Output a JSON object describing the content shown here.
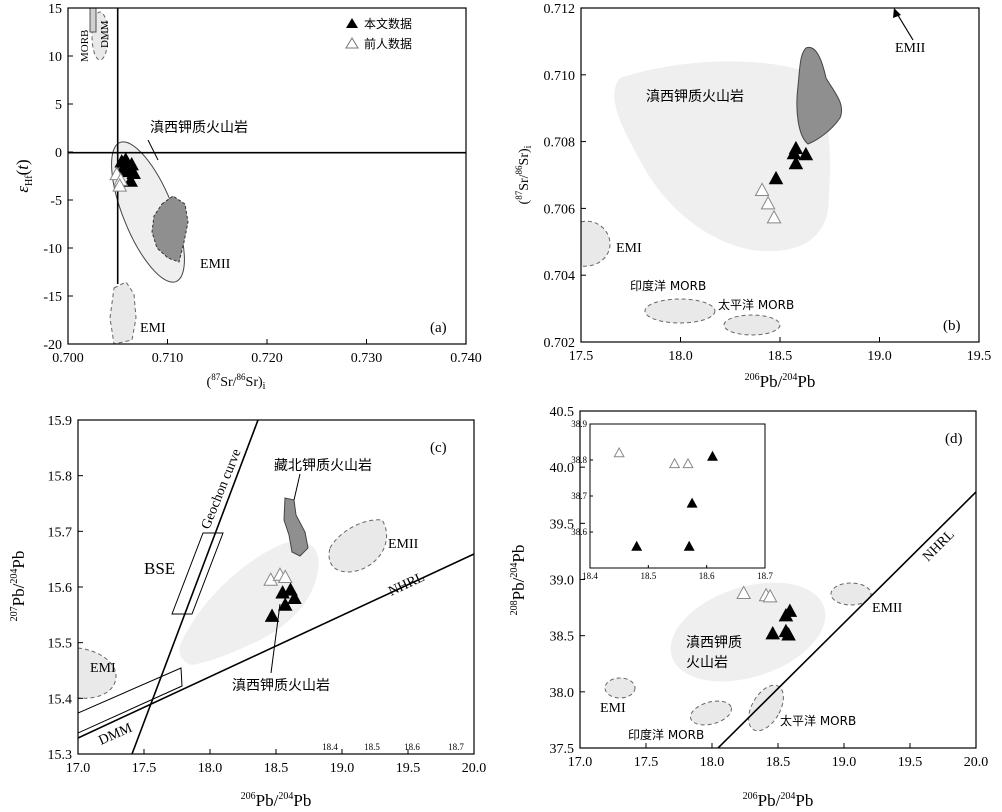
{
  "legend": {
    "solid": "本文数据",
    "open": "前人数据"
  },
  "colors": {
    "field_light": "#efefef",
    "field_dark": "#8f8f8f",
    "dashed_field": "#e9e9e9",
    "line": "#000000"
  },
  "chart_data": [
    {
      "id": "a",
      "type": "scatter",
      "panel_label": "(a)",
      "xlabel": "(87Sr/86Sr)i",
      "ylabel": "εHf(t)",
      "xlim": [
        0.7,
        0.74
      ],
      "ylim": [
        -20,
        15
      ],
      "xticks": [
        "0.700",
        "0.710",
        "0.720",
        "0.730",
        "0.740"
      ],
      "yticks": [
        "15",
        "10",
        "5",
        "0",
        "-5",
        "-10",
        "-15",
        "-20"
      ],
      "reference_lines": {
        "x": 0.7045,
        "y": 0
      },
      "series": [
        {
          "name": "本文数据",
          "marker": "filled-triangle",
          "points": [
            [
              0.7054,
              -1.0
            ],
            [
              0.7058,
              -0.8
            ],
            [
              0.7064,
              -1.3
            ],
            [
              0.7055,
              -1.8
            ],
            [
              0.7061,
              -2.0
            ],
            [
              0.7066,
              -2.2
            ],
            [
              0.7063,
              -3.0
            ]
          ]
        },
        {
          "name": "前人数据",
          "marker": "open-triangle",
          "points": [
            [
              0.7049,
              -2.3
            ],
            [
              0.7053,
              -2.9
            ],
            [
              0.7052,
              -3.5
            ]
          ]
        }
      ],
      "annotations": [
        "MORB",
        "DMM",
        "滇西钾质火山岩",
        "EMII",
        "EMI"
      ]
    },
    {
      "id": "b",
      "type": "scatter",
      "panel_label": "(b)",
      "xlabel": "206Pb/204Pb",
      "ylabel": "(87Sr/86Sr)i",
      "xlim": [
        17.5,
        19.5
      ],
      "ylim": [
        0.702,
        0.712
      ],
      "xticks": [
        "17.5",
        "18.0",
        "18.5",
        "19.0",
        "19.5"
      ],
      "yticks": [
        "0.712",
        "0.710",
        "0.708",
        "0.706",
        "0.704",
        "0.702"
      ],
      "series": [
        {
          "name": "本文数据",
          "marker": "filled-triangle",
          "points": [
            [
              18.58,
              0.7078
            ],
            [
              18.57,
              0.70765
            ],
            [
              18.63,
              0.70762
            ],
            [
              18.58,
              0.70735
            ],
            [
              18.48,
              0.7069
            ]
          ]
        },
        {
          "name": "前人数据",
          "marker": "open-triangle",
          "points": [
            [
              18.41,
              0.70655
            ],
            [
              18.44,
              0.70615
            ],
            [
              18.47,
              0.70573
            ]
          ]
        }
      ],
      "annotations": [
        "滇西钾质火山岩",
        "EMII",
        "EMI",
        "印度洋 MORB",
        "太平洋 MORB"
      ]
    },
    {
      "id": "c",
      "type": "scatter",
      "panel_label": "(c)",
      "xlabel": "206Pb/204Pb",
      "ylabel": "207Pb/204Pb",
      "xlim": [
        17.0,
        20.0
      ],
      "ylim": [
        15.3,
        15.9
      ],
      "xticks": [
        "17.0",
        "17.5",
        "18.0",
        "18.5",
        "19.0",
        "19.5",
        "20.0"
      ],
      "yticks": [
        "15.9",
        "15.8",
        "15.7",
        "15.6",
        "15.5",
        "15.4",
        "15.3"
      ],
      "minor_xticks": [
        "18.4",
        "18.5",
        "18.6",
        "18.7"
      ],
      "series": [
        {
          "name": "本文数据",
          "marker": "filled-triangle",
          "points": [
            [
              18.55,
              15.59
            ],
            [
              18.61,
              15.595
            ],
            [
              18.64,
              15.58
            ],
            [
              18.57,
              15.568
            ],
            [
              18.47,
              15.548
            ]
          ]
        },
        {
          "name": "前人数据",
          "marker": "open-triangle",
          "points": [
            [
              18.46,
              15.613
            ],
            [
              18.53,
              15.622
            ],
            [
              18.57,
              15.618
            ]
          ]
        }
      ],
      "annotations": [
        "Geochon curve",
        "藏北钾质火山岩",
        "BSE",
        "EMII",
        "NHRL",
        "EMI",
        "滇西钾质火山岩",
        "DMM"
      ]
    },
    {
      "id": "d",
      "type": "scatter",
      "panel_label": "(d)",
      "xlabel": "206Pb/204Pb",
      "ylabel": "208Pb/204Pb",
      "xlim": [
        17.0,
        20.0
      ],
      "ylim": [
        37.5,
        40.5
      ],
      "xticks": [
        "17.0",
        "17.5",
        "18.0",
        "18.5",
        "19.0",
        "19.5",
        "20.0"
      ],
      "yticks": [
        "40.5",
        "40.0",
        "39.5",
        "39.0",
        "38.5",
        "38.0",
        "37.5"
      ],
      "series": [
        {
          "name": "本文数据",
          "marker": "filled-triangle",
          "points": [
            [
              18.59,
              38.72
            ],
            [
              18.56,
              38.68
            ],
            [
              18.46,
              38.52
            ],
            [
              18.56,
              38.54
            ],
            [
              18.58,
              38.51
            ]
          ]
        },
        {
          "name": "前人数据",
          "marker": "open-triangle",
          "points": [
            [
              18.24,
              38.88
            ],
            [
              18.41,
              38.86
            ],
            [
              18.44,
              38.85
            ]
          ]
        }
      ],
      "annotations": [
        "滇西钾质",
        "火山岩",
        "NHRL",
        "EMII",
        "EMI",
        "印度洋 MORB",
        "太平洋 MORB"
      ],
      "inset": {
        "xlim": [
          18.4,
          18.7
        ],
        "ylim": [
          38.5,
          38.9
        ],
        "xticks": [
          "18.4",
          "18.5",
          "18.6",
          "18.7"
        ],
        "yticks": [
          "38.9",
          "38.8",
          "38.7",
          "38.6"
        ],
        "series": [
          {
            "name": "本文数据",
            "marker": "filled-triangle",
            "points": [
              [
                18.61,
                38.81
              ],
              [
                18.575,
                38.68
              ],
              [
                18.57,
                38.56
              ],
              [
                18.48,
                38.56
              ]
            ]
          },
          {
            "name": "前人数据",
            "marker": "open-triangle",
            "points": [
              [
                18.45,
                38.82
              ],
              [
                18.545,
                38.79
              ],
              [
                18.568,
                38.79
              ]
            ]
          }
        ]
      }
    }
  ]
}
